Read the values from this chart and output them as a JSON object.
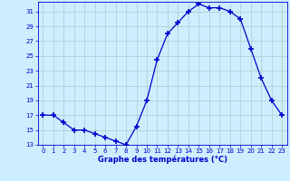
{
  "hours": [
    0,
    1,
    2,
    3,
    4,
    5,
    6,
    7,
    8,
    9,
    10,
    11,
    12,
    13,
    14,
    15,
    16,
    17,
    18,
    19,
    20,
    21,
    22,
    23
  ],
  "temps": [
    17,
    17,
    16,
    15,
    15,
    14.5,
    14,
    13.5,
    13,
    15.5,
    19,
    24.5,
    28,
    29.5,
    31,
    32,
    31.5,
    31.5,
    31,
    30,
    26,
    22,
    19,
    17
  ],
  "xlabel": "Graphe des températures (°C)",
  "ylim": [
    13,
    32
  ],
  "xlim": [
    -0.5,
    23.5
  ],
  "yticks": [
    13,
    15,
    17,
    19,
    21,
    23,
    25,
    27,
    29,
    31
  ],
  "xticks": [
    0,
    1,
    2,
    3,
    4,
    5,
    6,
    7,
    8,
    9,
    10,
    11,
    12,
    13,
    14,
    15,
    16,
    17,
    18,
    19,
    20,
    21,
    22,
    23
  ],
  "line_color": "#0000cc",
  "marker": "+",
  "bg_color": "#cceeff",
  "grid_color": "#aacccc",
  "axis_label_color": "#0000cc",
  "tick_color": "#0000cc"
}
